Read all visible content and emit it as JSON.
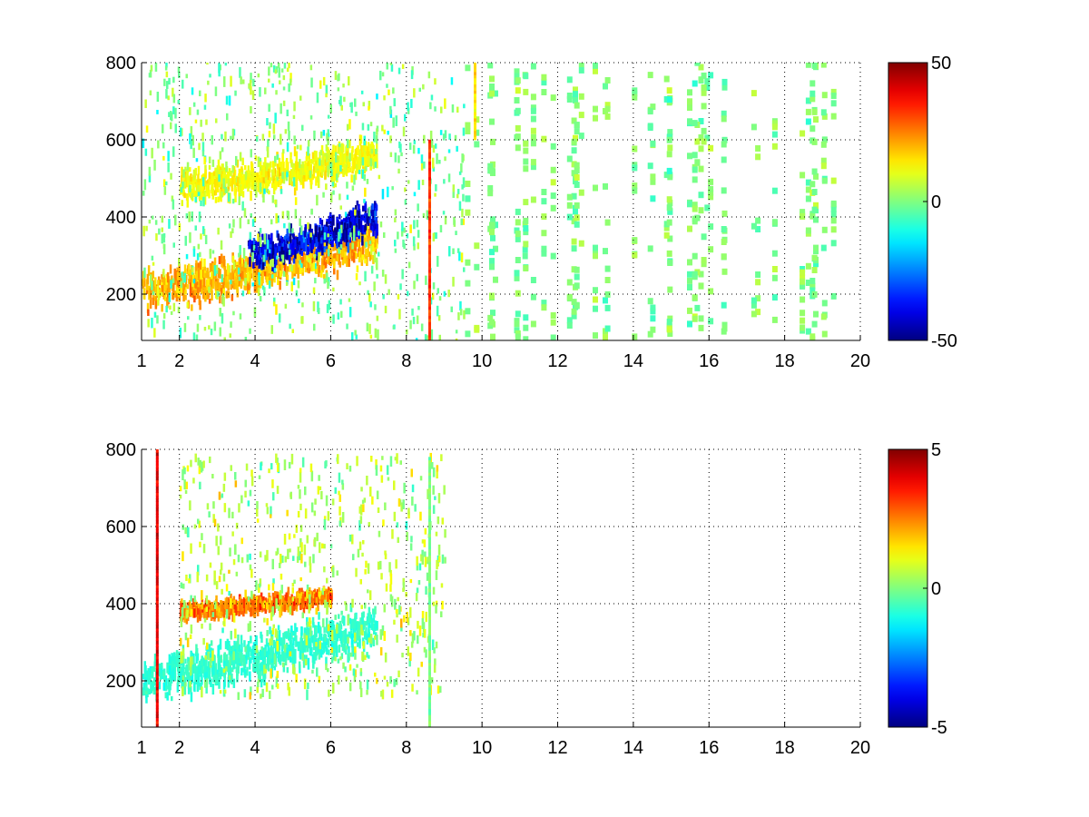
{
  "chart_data": [
    {
      "type": "heatmap",
      "title": "",
      "xlabel": "",
      "ylabel": "",
      "xlim": [
        1,
        20
      ],
      "ylim": [
        80,
        800
      ],
      "xticks": [
        1,
        2,
        4,
        6,
        8,
        10,
        12,
        14,
        16,
        18,
        20
      ],
      "yticks": [
        200,
        400,
        600,
        800
      ],
      "grid": true,
      "colormap": "jet",
      "clim": [
        -50,
        50
      ],
      "colorbar_ticks": [
        "50",
        "0",
        "-50"
      ],
      "features": [
        {
          "kind": "band",
          "x0": 1.0,
          "x1": 7.2,
          "y_start": 210,
          "y_end": 340,
          "width": 70,
          "value": 20
        },
        {
          "kind": "band",
          "x0": 2.0,
          "x1": 7.2,
          "y_start": 480,
          "y_end": 560,
          "width": 60,
          "value": 12
        },
        {
          "kind": "band",
          "x0": 3.8,
          "x1": 7.2,
          "y_start": 300,
          "y_end": 400,
          "width": 60,
          "value": -40
        },
        {
          "kind": "scatter_region",
          "x0": 1.0,
          "x1": 9.5,
          "y0": 80,
          "y1": 800,
          "value": 0
        },
        {
          "kind": "sparse_region",
          "x0": 9.5,
          "x1": 20,
          "y0": 80,
          "y1": 800,
          "value": 0
        },
        {
          "kind": "column",
          "x": 8.6,
          "y0": 80,
          "y1": 600,
          "value": 32
        },
        {
          "kind": "column",
          "x": 9.8,
          "y0": 600,
          "y1": 800,
          "value": 15
        }
      ]
    },
    {
      "type": "heatmap",
      "title": "",
      "xlabel": "",
      "ylabel": "",
      "xlim": [
        1,
        20
      ],
      "ylim": [
        80,
        800
      ],
      "xticks": [
        1,
        2,
        4,
        6,
        8,
        10,
        12,
        14,
        16,
        18,
        20
      ],
      "yticks": [
        200,
        400,
        600,
        800
      ],
      "grid": true,
      "colormap": "jet",
      "clim": [
        -5,
        5
      ],
      "colorbar_ticks": [
        "5",
        "0",
        "-5"
      ],
      "features": [
        {
          "kind": "band",
          "x0": 1.0,
          "x1": 7.2,
          "y_start": 210,
          "y_end": 340,
          "width": 80,
          "value": -0.8
        },
        {
          "kind": "band",
          "x0": 2.0,
          "x1": 6.0,
          "y_start": 380,
          "y_end": 420,
          "width": 30,
          "value": 2.5
        },
        {
          "kind": "scatter_region",
          "x0": 2.0,
          "x1": 9.0,
          "y0": 160,
          "y1": 780,
          "value": 0.5
        },
        {
          "kind": "column",
          "x": 8.6,
          "y0": 80,
          "y1": 780,
          "value": 0
        },
        {
          "kind": "column",
          "x": 1.4,
          "y0": 80,
          "y1": 800,
          "value": 4
        }
      ]
    }
  ]
}
